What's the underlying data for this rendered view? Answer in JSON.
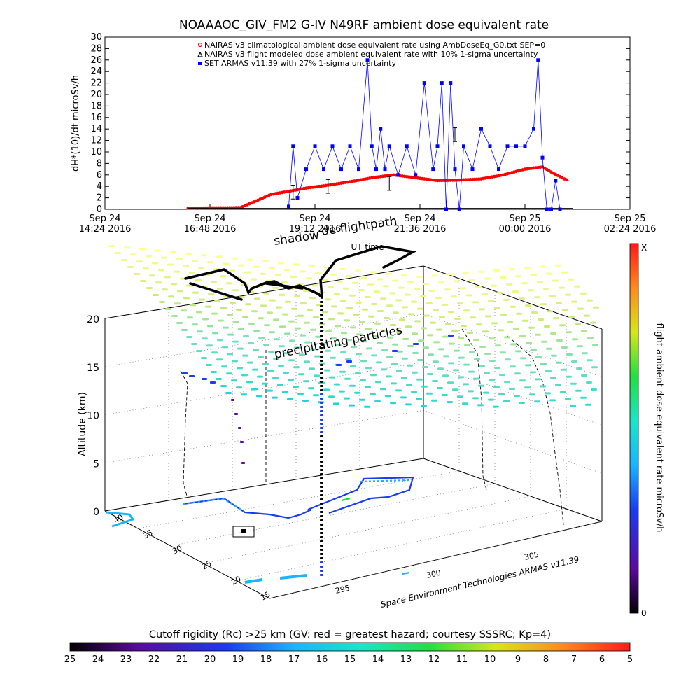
{
  "chart_data": [
    {
      "type": "line",
      "title": "NOAAAOC_GIV_FM2 G-IV    N49RF   ambient dose equivalent rate",
      "ylabel": "dH*(10)/dt microSv/h",
      "ylim": [
        0,
        30
      ],
      "yticks": [
        "0",
        "2",
        "4",
        "6",
        "8",
        "10",
        "12",
        "14",
        "16",
        "18",
        "20",
        "22",
        "24",
        "26",
        "28",
        "30"
      ],
      "xticks": [
        {
          "day": "Sep 24",
          "time": "14:24 2016"
        },
        {
          "day": "Sep 24",
          "time": "16:48 2016"
        },
        {
          "day": "Sep 24",
          "time": "19:12 2016"
        },
        {
          "day": "Sep 24",
          "time": "21:36 2016"
        },
        {
          "day": "Sep 25",
          "time": "00:00 2016"
        },
        {
          "day": "Sep 25",
          "time": "02:24 2016"
        }
      ],
      "xlim_hours": [
        14.4,
        26.4
      ],
      "xlabel": "UT time",
      "legend": [
        "NAIRAS v3 climatological ambient dose equivalent rate using AmbDoseEq_G0.txt SEP=0",
        "NAIRAS v3 flight modeled dose ambient equivalent rate with 10% 1-sigma uncertainty",
        "SET ARMAS v11.39 with 27% 1-sigma uncertainty"
      ],
      "legend_placement": "top-right",
      "colors": {
        "climatological": "#ff0000",
        "modeled": "#000000",
        "armas": "#0000ff"
      },
      "series": [
        {
          "name": "NAIRAS v3 climatological ambient dose equivalent rate using AmbDoseEq_G0.txt SEP=0",
          "x": [
            16.3,
            17.5,
            18.2,
            18.5,
            19.0,
            19.5,
            20.0,
            20.5,
            21.0,
            21.5,
            22.0,
            22.5,
            23.0,
            23.5,
            24.0,
            24.4,
            24.6,
            24.9,
            25.0
          ],
          "values": [
            0.2,
            0.3,
            2.6,
            3.0,
            3.7,
            4.2,
            4.8,
            5.5,
            6.0,
            5.5,
            5.0,
            5.1,
            5.3,
            6.0,
            7.0,
            7.4,
            6.5,
            5.3,
            5.0
          ]
        },
        {
          "name": "SET ARMAS v11.39 with 27% 1-sigma uncertainty",
          "x": [
            18.6,
            18.7,
            18.8,
            19.0,
            19.2,
            19.4,
            19.6,
            19.8,
            20.0,
            20.2,
            20.4,
            20.5,
            20.6,
            20.7,
            20.8,
            20.9,
            21.1,
            21.3,
            21.5,
            21.7,
            21.9,
            22.0,
            22.1,
            22.2,
            22.3,
            22.4,
            22.5,
            22.6,
            22.8,
            23.0,
            23.2,
            23.4,
            23.6,
            23.8,
            24.0,
            24.2,
            24.3,
            24.4,
            24.5,
            24.6,
            24.7,
            24.8
          ],
          "values": [
            0.5,
            11.0,
            2.0,
            7.0,
            11.0,
            7.0,
            11.0,
            7.0,
            11.0,
            7.0,
            26.0,
            11.0,
            7.0,
            14.0,
            7.0,
            11.0,
            6.0,
            11.0,
            6.0,
            22.0,
            7.0,
            11.0,
            22.0,
            0.0,
            22.0,
            7.0,
            0.0,
            11.0,
            7.0,
            14.0,
            11.0,
            7.0,
            11.0,
            11.0,
            11.0,
            14.0,
            26.0,
            9.0,
            0.0,
            0.0,
            5.0,
            0.0
          ]
        }
      ]
    },
    {
      "type": "scatter",
      "title": "",
      "annotations": {
        "shadow": "shadow",
        "flightpath": "de flightpath",
        "particles": "precipitating particles",
        "credit": "Space Environment Technologies ARMAS v11.39"
      },
      "zlabel": "Altitude (km)",
      "zticks": [
        "0",
        "5",
        "10",
        "15",
        "20"
      ],
      "lat_ticks": [
        "40",
        "35",
        "30",
        "25",
        "20",
        "15"
      ],
      "lon_ticks": [
        "295",
        "300",
        "305"
      ],
      "colorbar_label": "flight ambient dose equivalent rate microSv/h",
      "colorbar_top": "X",
      "colorbar_bottom": "0"
    },
    {
      "type": "heatmap",
      "title": "Cutoff rigidity (Rc) >25 km (GV: red = greatest hazard; courtesy SSSRC; Kp=4)",
      "ticks": [
        "25",
        "24",
        "23",
        "22",
        "21",
        "20",
        "19",
        "18",
        "17",
        "16",
        "15",
        "14",
        "13",
        "12",
        "11",
        "10",
        "9",
        "8",
        "7",
        "6",
        "5"
      ]
    }
  ]
}
